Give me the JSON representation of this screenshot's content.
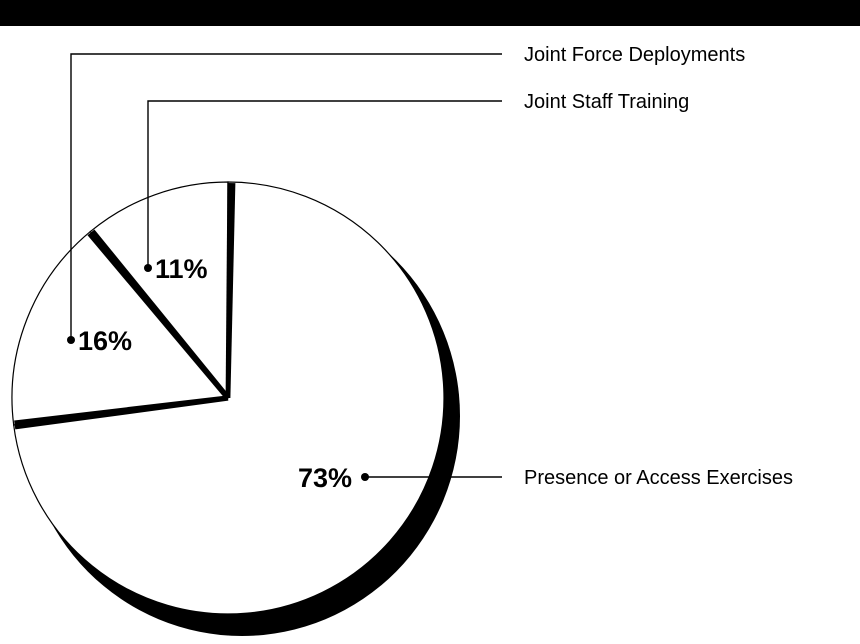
{
  "chart_data": {
    "type": "pie",
    "title": "",
    "slices": [
      {
        "label": "Joint Force Deployments",
        "value": 16,
        "display": "16%"
      },
      {
        "label": "Joint Staff Training",
        "value": 11,
        "display": "11%"
      },
      {
        "label": "Presence or Access Exercises",
        "value": 73,
        "display": "73%"
      }
    ],
    "colors": {
      "fill": "#ffffff",
      "edge": "#000000",
      "shadow": "#000000",
      "top_bar": "#000000"
    }
  }
}
